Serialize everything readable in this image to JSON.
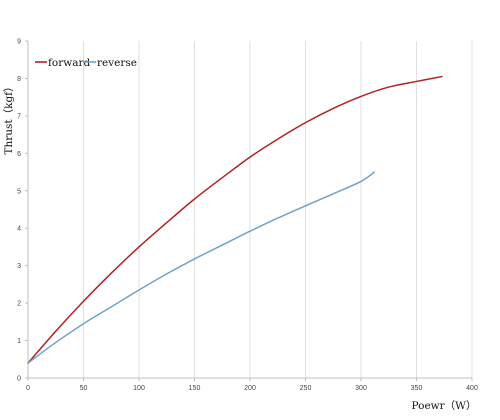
{
  "chart_data": {
    "type": "line",
    "title": "",
    "xlabel": "Poewr（W）",
    "ylabel": "Thrust（kgf）",
    "xlim": [
      0,
      400
    ],
    "ylim": [
      0,
      9
    ],
    "x_ticks": [
      0,
      50,
      100,
      150,
      200,
      250,
      300,
      350,
      400
    ],
    "y_ticks": [
      0,
      1,
      2,
      3,
      4,
      5,
      6,
      7,
      8,
      9
    ],
    "grid": "vertical",
    "legend_position": "top-left",
    "series": [
      {
        "name": "forward",
        "color": "#b22222",
        "x": [
          0,
          25,
          50,
          75,
          100,
          125,
          150,
          175,
          200,
          225,
          250,
          275,
          300,
          325,
          350,
          373
        ],
        "y": [
          0.4,
          1.25,
          2.05,
          2.8,
          3.5,
          4.15,
          4.78,
          5.35,
          5.9,
          6.38,
          6.82,
          7.2,
          7.52,
          7.77,
          7.92,
          8.05
        ]
      },
      {
        "name": "reverse",
        "color": "#6fa3c6",
        "x": [
          0,
          25,
          50,
          75,
          100,
          125,
          150,
          175,
          200,
          225,
          250,
          275,
          300,
          312
        ],
        "y": [
          0.4,
          0.95,
          1.45,
          1.9,
          2.35,
          2.78,
          3.18,
          3.55,
          3.92,
          4.27,
          4.6,
          4.92,
          5.25,
          5.5
        ]
      }
    ]
  }
}
